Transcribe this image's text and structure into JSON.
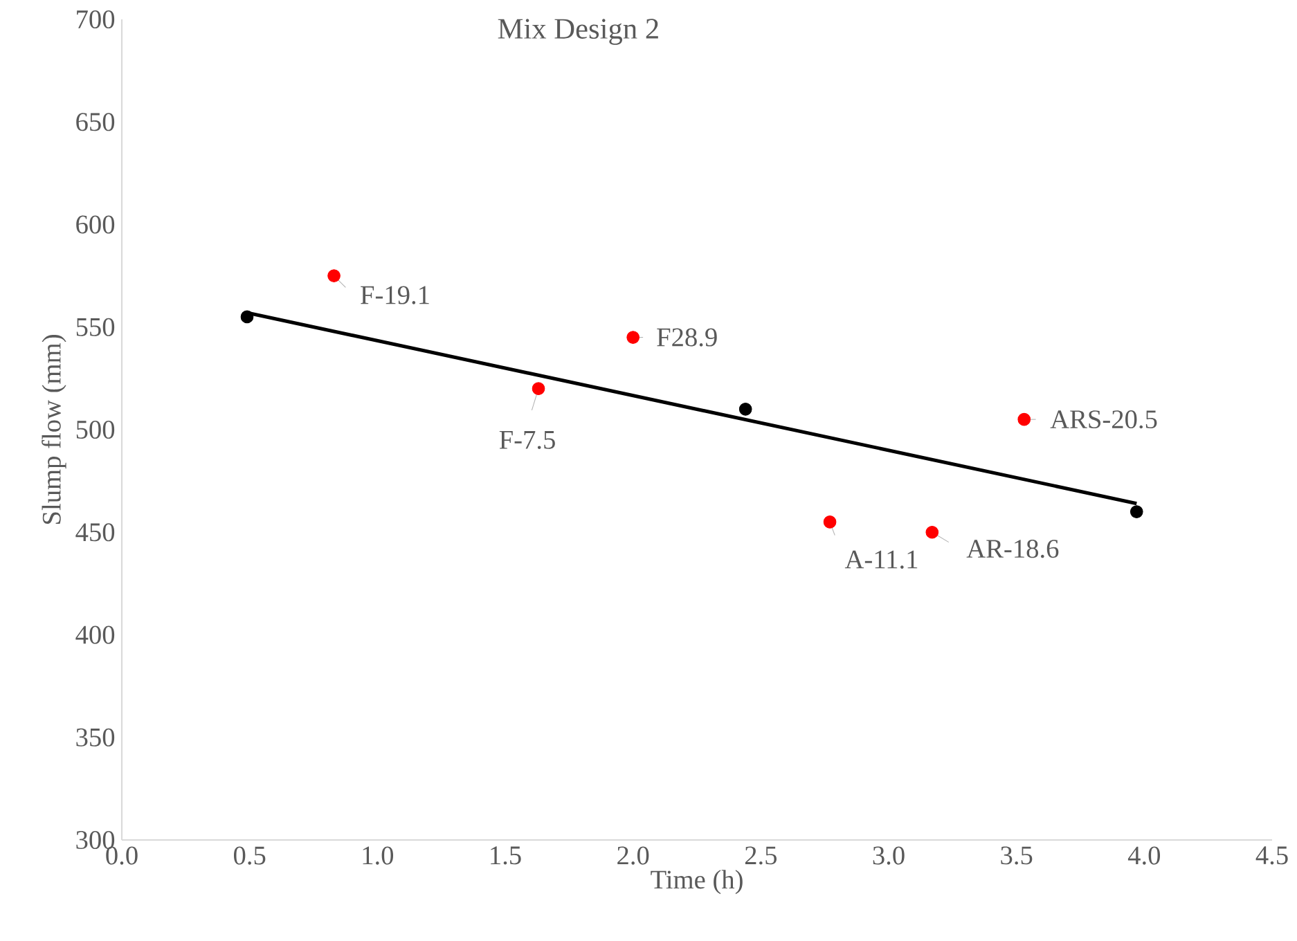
{
  "chart_data": {
    "type": "scatter",
    "title": "Mix Design 2",
    "xlabel": "Time (h)",
    "ylabel": "Slump flow (mm)",
    "xlim": [
      0,
      4.5
    ],
    "xticks": [
      {
        "value": 0,
        "label": "0.0"
      },
      {
        "value": 0.5,
        "label": "0.5"
      },
      {
        "value": 1,
        "label": "1.0"
      },
      {
        "value": 1.5,
        "label": "1.5"
      },
      {
        "value": 2,
        "label": "2.0"
      },
      {
        "value": 2.5,
        "label": "2.5"
      },
      {
        "value": 3,
        "label": "3.0"
      },
      {
        "value": 3.5,
        "label": "3.5"
      },
      {
        "value": 4,
        "label": "4.0"
      },
      {
        "value": 4.5,
        "label": "4.5"
      }
    ],
    "ylim": [
      300,
      700
    ],
    "yticks": [
      300,
      350,
      400,
      450,
      500,
      550,
      600,
      650,
      700
    ],
    "grid": false,
    "series": [
      {
        "marker": "circle",
        "color": "#000000",
        "x": [
          0.49,
          2.44,
          3.97
        ],
        "values": [
          555,
          510,
          460
        ]
      },
      {
        "type": "line",
        "marker": "none",
        "color": "#000000",
        "x": [
          0.49,
          3.97
        ],
        "values": [
          557,
          464
        ]
      },
      {
        "marker": "circle",
        "color": "#ff0000",
        "x": [
          0.83,
          1.63,
          2.0,
          2.77,
          3.17,
          3.53
        ],
        "values": [
          575,
          520,
          545,
          455,
          450,
          505
        ]
      }
    ],
    "annotations": [
      {
        "text": "F-19.1",
        "x": 0.83,
        "y": 575
      },
      {
        "text": "F-7.5",
        "x": 1.63,
        "y": 520
      },
      {
        "text": "F28.9",
        "x": 2.0,
        "y": 545
      },
      {
        "text": "A-11.1",
        "x": 2.77,
        "y": 455
      },
      {
        "text": "AR-18.6",
        "x": 3.17,
        "y": 450
      },
      {
        "text": "ARS-20.5",
        "x": 3.53,
        "y": 505
      }
    ]
  }
}
